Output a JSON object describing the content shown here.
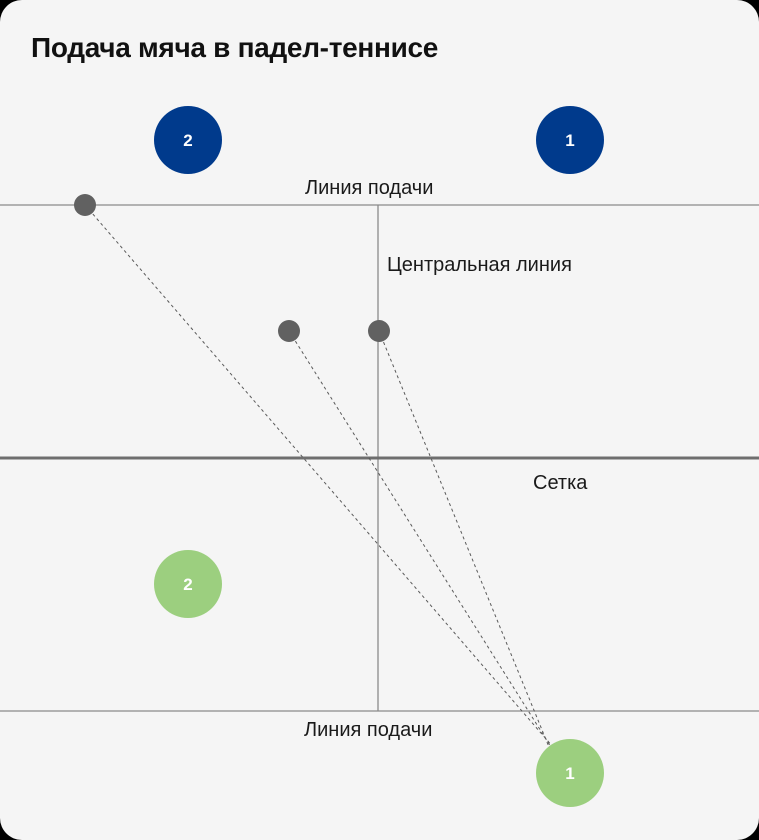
{
  "title": "Подача мяча в падел-теннисе",
  "labels": {
    "service_line_top": "Линия подачи",
    "center_line": "Центральная линия",
    "net": "Сетка",
    "service_line_bottom": "Линия подачи"
  },
  "players": {
    "opponent_left": "2",
    "opponent_right": "1",
    "team_left": "2",
    "server": "1"
  },
  "colors": {
    "background": "#f5f5f5",
    "opponent": "#003a8c",
    "team": "#9ccf7f",
    "ball": "#616161",
    "court_line": "#8a8a8a",
    "net_line": "#6e6e6e"
  }
}
